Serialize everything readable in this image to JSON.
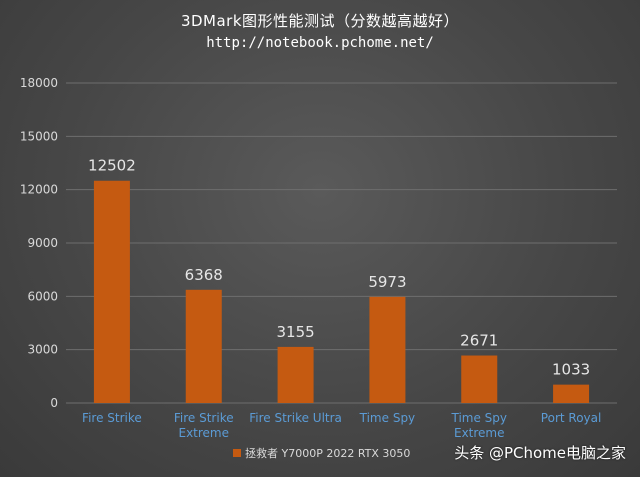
{
  "title": "3DMark图形性能测试（分数越高越好）",
  "subtitle": "http://notebook.pchome.net/",
  "watermark": "头条 @PChome电脑之家",
  "colors": {
    "bar": "#c55a11",
    "grid": "#6e6e6e",
    "tick_text": "#d9d9d9",
    "category_text": "#5b9bd5",
    "value_text": "#e6e6e6"
  },
  "chart_data": {
    "type": "bar",
    "categories": [
      [
        "Fire Strike"
      ],
      [
        "Fire Strike",
        "Extreme"
      ],
      [
        "Fire Strike Ultra"
      ],
      [
        "Time Spy"
      ],
      [
        "Time Spy",
        "Extreme"
      ],
      [
        "Port Royal"
      ]
    ],
    "series": [
      {
        "name": "拯救者 Y7000P 2022 RTX 3050",
        "values": [
          12502,
          6368,
          3155,
          5973,
          2671,
          1033
        ]
      }
    ],
    "ylim": [
      0,
      18000
    ],
    "yticks": [
      0,
      3000,
      6000,
      9000,
      12000,
      15000,
      18000
    ],
    "grid": true,
    "legend_position": "bottom"
  }
}
